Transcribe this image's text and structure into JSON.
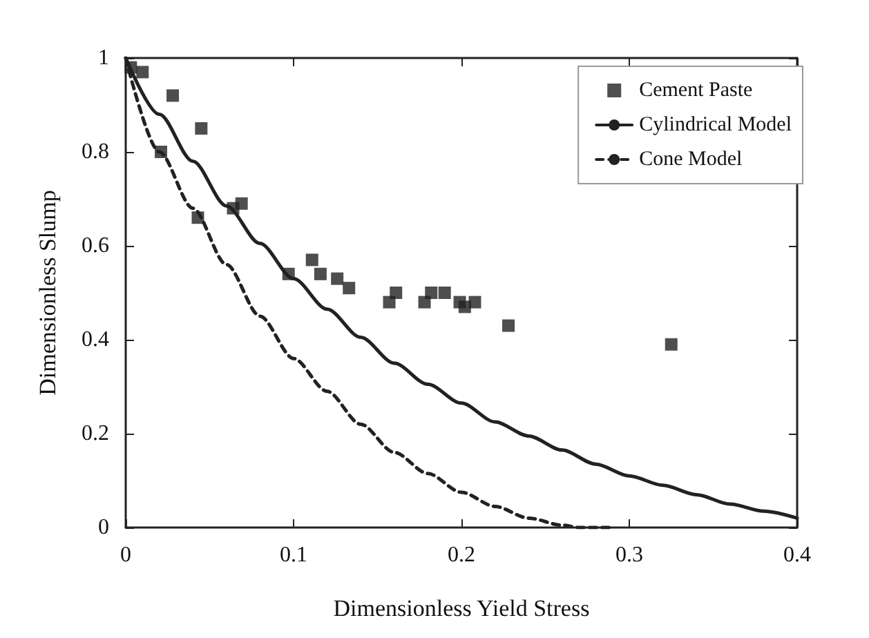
{
  "chart_data": {
    "type": "scatter",
    "xlabel": "Dimensionless Yield Stress",
    "ylabel": "Dimensionless Slump",
    "xlim": [
      0,
      0.4
    ],
    "xticks": [
      0,
      0.1,
      0.2,
      0.3,
      0.4
    ],
    "ylim": [
      0,
      1
    ],
    "yticks": [
      0,
      0.2,
      0.4,
      0.6,
      0.8,
      1
    ],
    "grid": false,
    "legend": "top right",
    "series": [
      {
        "name": "Cement Paste",
        "marker": "square",
        "color": "#222222",
        "x": [
          0.003,
          0.01,
          0.028,
          0.045,
          0.021,
          0.043,
          0.064,
          0.069,
          0.097,
          0.111,
          0.116,
          0.126,
          0.133,
          0.157,
          0.161,
          0.178,
          0.182,
          0.19,
          0.199,
          0.202,
          0.208,
          0.228,
          0.325
        ],
        "values": [
          0.98,
          0.97,
          0.92,
          0.85,
          0.8,
          0.66,
          0.68,
          0.69,
          0.54,
          0.57,
          0.54,
          0.53,
          0.51,
          0.48,
          0.5,
          0.48,
          0.5,
          0.5,
          0.48,
          0.47,
          0.48,
          0.43,
          0.39
        ]
      },
      {
        "name": "Cylindrical Model",
        "type": "line",
        "marker": "none",
        "line_style": "solid",
        "color": "#222222",
        "x": [
          0,
          0.02,
          0.04,
          0.06,
          0.08,
          0.1,
          0.12,
          0.14,
          0.16,
          0.18,
          0.2,
          0.22,
          0.24,
          0.26,
          0.28,
          0.3,
          0.32,
          0.34,
          0.36,
          0.38,
          0.4
        ],
        "values": [
          1,
          0.88,
          0.78,
          0.685,
          0.605,
          0.53,
          0.465,
          0.405,
          0.35,
          0.305,
          0.265,
          0.225,
          0.195,
          0.165,
          0.135,
          0.11,
          0.09,
          0.07,
          0.05,
          0.035,
          0.02
        ]
      },
      {
        "name": "Cone Model",
        "type": "line",
        "marker": "none",
        "line_style": "dashed",
        "color": "#222222",
        "x": [
          0,
          0.02,
          0.04,
          0.06,
          0.08,
          0.1,
          0.12,
          0.14,
          0.16,
          0.18,
          0.2,
          0.22,
          0.24,
          0.26,
          0.27,
          0.29
        ],
        "values": [
          1,
          0.8,
          0.68,
          0.56,
          0.45,
          0.36,
          0.29,
          0.22,
          0.16,
          0.115,
          0.075,
          0.045,
          0.02,
          0.005,
          0,
          0
        ]
      }
    ]
  }
}
